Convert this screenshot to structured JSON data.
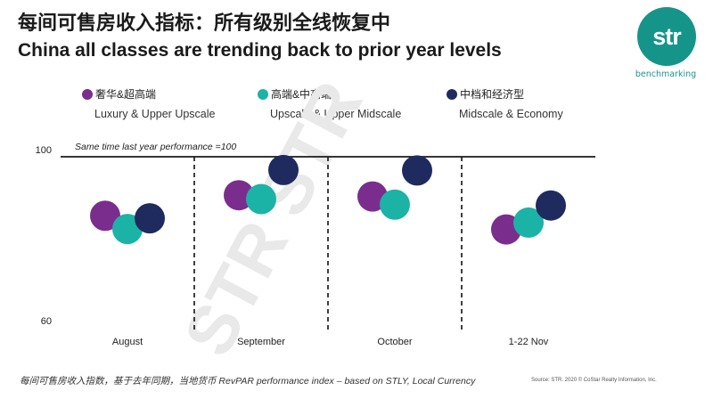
{
  "header": {
    "title_cn": "每间可售房收入指标：所有级别全线恢复中",
    "title_en": "China all classes are trending back to prior year levels"
  },
  "logo": {
    "text": "str",
    "caption": "benchmarking",
    "color": "#15948a"
  },
  "watermark": {
    "text": "STR STR",
    "color": "#e9e9e9"
  },
  "chart_data": {
    "type": "scatter",
    "title": "",
    "xlabel": "",
    "ylabel": "",
    "categories": [
      "August",
      "September",
      "October",
      "1-22 Nov"
    ],
    "ylim": [
      60,
      100
    ],
    "yticks": [
      60,
      100
    ],
    "reference_line": {
      "value": 100,
      "label": "Same time last year performance =100"
    },
    "legend_position": "top",
    "series": [
      {
        "name": "Luxury & Upper Upscale",
        "name_cn": "奢华&超高端",
        "color": "#7b2d8e",
        "values": [
          86.2,
          91.0,
          90.7,
          83.0
        ]
      },
      {
        "name": "Upscale & Upper Midscale",
        "name_cn": "高端&中高端",
        "color": "#1bb3a6",
        "values": [
          83.1,
          90.1,
          88.8,
          84.6
        ]
      },
      {
        "name": "Midscale & Economy",
        "name_cn": "中档和经济型",
        "color": "#1f2b5e",
        "values": [
          85.6,
          96.9,
          96.8,
          88.6
        ]
      }
    ]
  },
  "footer": {
    "note": "每间可售房收入指数，基于去年同期，当地货币 RevPAR performance index – based on STLY, Local Currency",
    "source": "Source: STR. 2020 © CoStar Realty Information, Inc."
  }
}
